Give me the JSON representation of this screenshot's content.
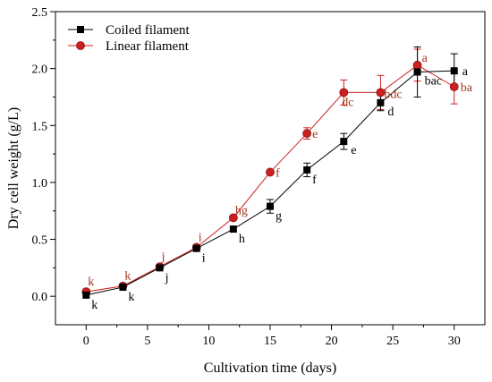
{
  "chart_data": {
    "type": "line",
    "xlabel": "Cultivation time (days)",
    "ylabel": "Dry cell weight (g/L)",
    "xlim": [
      -2.5,
      32.5
    ],
    "ylim": [
      -0.25,
      2.5
    ],
    "xticks": [
      0,
      5,
      10,
      15,
      20,
      25,
      30
    ],
    "yticks": [
      0.0,
      0.5,
      1.0,
      1.5,
      2.0,
      2.5
    ],
    "x_tick_labels": [
      "0",
      "5",
      "10",
      "15",
      "20",
      "25",
      "30"
    ],
    "y_tick_labels": [
      "0.0",
      "0.5",
      "1.0",
      "1.5",
      "2.0",
      "2.5"
    ],
    "legend_position": "top-left",
    "series": [
      {
        "name": "Coiled filament",
        "color": "#000000",
        "marker": "square",
        "x": [
          0,
          3,
          6,
          9,
          12,
          15,
          18,
          21,
          24,
          27,
          30
        ],
        "y": [
          0.01,
          0.08,
          0.25,
          0.42,
          0.59,
          0.79,
          1.11,
          1.36,
          1.7,
          1.97,
          1.98
        ],
        "err": [
          0,
          0,
          0,
          0,
          0,
          0.06,
          0.06,
          0.07,
          0.07,
          0.22,
          0.15
        ],
        "labels": [
          "k",
          "k",
          "j",
          "i",
          "h",
          "g",
          "f",
          "e",
          "d",
          "bac",
          "a"
        ]
      },
      {
        "name": "Linear filament",
        "color": "#cc1f1f",
        "marker": "circle",
        "x": [
          0,
          3,
          6,
          9,
          12,
          15,
          18,
          21,
          24,
          27,
          30
        ],
        "y": [
          0.04,
          0.09,
          0.26,
          0.43,
          0.69,
          1.09,
          1.43,
          1.79,
          1.79,
          2.03,
          1.84
        ],
        "err": [
          0,
          0,
          0,
          0,
          0,
          0,
          0.05,
          0.11,
          0.15,
          0.14,
          0.15
        ],
        "labels": [
          "k",
          "k",
          "j",
          "i",
          "hg",
          "f",
          "e",
          "dc",
          "bdc",
          "a",
          "ba"
        ]
      }
    ]
  }
}
